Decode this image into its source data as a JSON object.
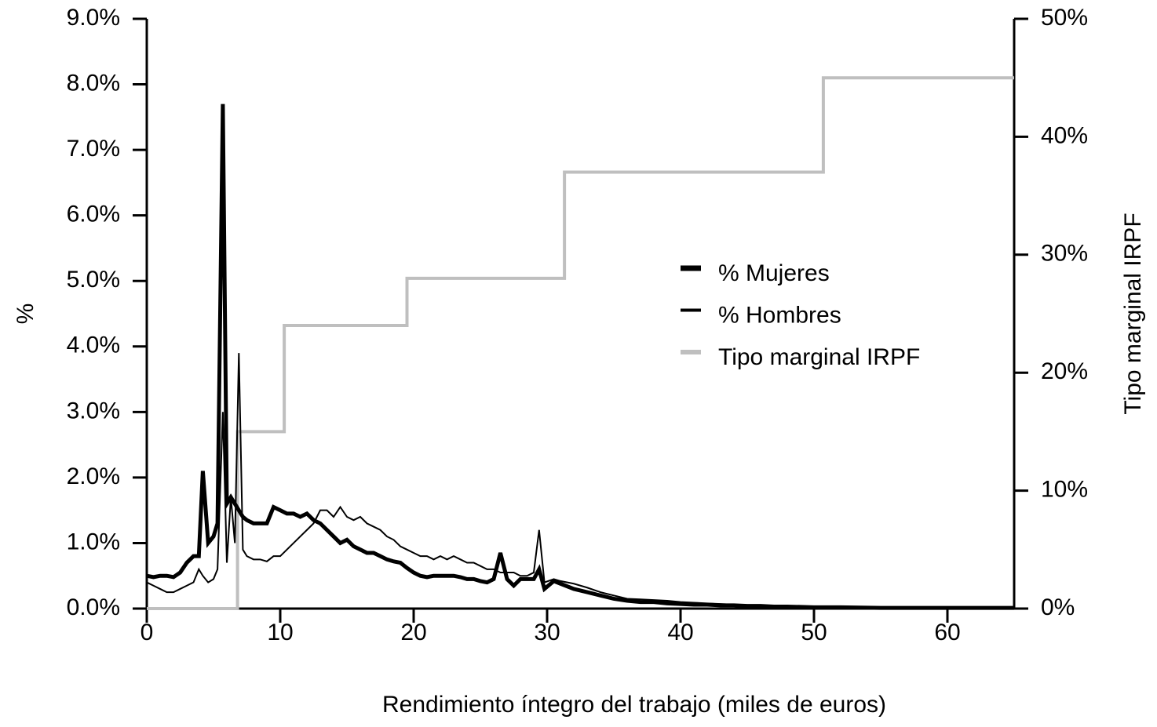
{
  "chart_data": {
    "type": "line",
    "xlabel": "Rendimiento íntegro del trabajo (miles de euros)",
    "ylabel": "%",
    "y2label": "Tipo marginal IRPF",
    "xlim": [
      0,
      65
    ],
    "xticks": [
      0,
      10,
      20,
      30,
      40,
      50,
      60
    ],
    "ylim": [
      0,
      9
    ],
    "yticks": [
      {
        "value": 0,
        "label": "0.0%"
      },
      {
        "value": 1,
        "label": "1.0%"
      },
      {
        "value": 2,
        "label": "2.0%"
      },
      {
        "value": 3,
        "label": "3.0%"
      },
      {
        "value": 4,
        "label": "4.0%"
      },
      {
        "value": 5,
        "label": "5.0%"
      },
      {
        "value": 6,
        "label": "6.0%"
      },
      {
        "value": 7,
        "label": "7.0%"
      },
      {
        "value": 8,
        "label": "8.0%"
      },
      {
        "value": 9,
        "label": "9.0%"
      }
    ],
    "y2lim": [
      0,
      50
    ],
    "y2ticks": [
      {
        "value": 0,
        "label": "0%"
      },
      {
        "value": 10,
        "label": "10%"
      },
      {
        "value": 20,
        "label": "20%"
      },
      {
        "value": 30,
        "label": "30%"
      },
      {
        "value": 40,
        "label": "40%"
      },
      {
        "value": 50,
        "label": "50%"
      }
    ],
    "grid": false,
    "legend": "center-right",
    "series": [
      {
        "name": "% Mujeres",
        "color": "#000000",
        "line_width": 5,
        "x": [
          0,
          0.5,
          1,
          1.5,
          2,
          2.5,
          3,
          3.5,
          3.9,
          4.2,
          4.6,
          5,
          5.3,
          5.7,
          6,
          6.3,
          6.6,
          6.9,
          7.2,
          7.5,
          8,
          8.5,
          9,
          9.5,
          10,
          10.5,
          11,
          11.5,
          12,
          12.5,
          13,
          13.5,
          14,
          14.5,
          15,
          15.5,
          16,
          16.5,
          17,
          17.5,
          18,
          18.5,
          19,
          19.5,
          20,
          20.5,
          21,
          21.5,
          22,
          22.5,
          23,
          23.5,
          24,
          24.5,
          25,
          25.5,
          26,
          26.5,
          27,
          27.5,
          28,
          28.5,
          29,
          29.4,
          29.8,
          30.5,
          31,
          32,
          33,
          34,
          35,
          36,
          37,
          38,
          39,
          40,
          41,
          42,
          43,
          44,
          45,
          46,
          47,
          48,
          50,
          52,
          55,
          58,
          61,
          65
        ],
        "values": [
          0.5,
          0.48,
          0.5,
          0.5,
          0.48,
          0.55,
          0.7,
          0.8,
          0.8,
          2.1,
          1.0,
          1.1,
          1.3,
          7.7,
          1.6,
          1.7,
          1.6,
          1.5,
          1.4,
          1.35,
          1.3,
          1.3,
          1.3,
          1.55,
          1.5,
          1.45,
          1.45,
          1.4,
          1.45,
          1.35,
          1.3,
          1.2,
          1.1,
          1.0,
          1.05,
          0.95,
          0.9,
          0.85,
          0.85,
          0.8,
          0.75,
          0.72,
          0.7,
          0.62,
          0.55,
          0.5,
          0.48,
          0.5,
          0.5,
          0.5,
          0.5,
          0.48,
          0.45,
          0.45,
          0.42,
          0.4,
          0.45,
          0.85,
          0.45,
          0.35,
          0.45,
          0.45,
          0.45,
          0.6,
          0.3,
          0.42,
          0.38,
          0.3,
          0.25,
          0.2,
          0.15,
          0.12,
          0.1,
          0.1,
          0.08,
          0.07,
          0.06,
          0.06,
          0.05,
          0.05,
          0.04,
          0.04,
          0.03,
          0.03,
          0.02,
          0.02,
          0.01,
          0.01,
          0.01,
          0.01
        ]
      },
      {
        "name": "% Hombres",
        "color": "#000000",
        "line_width": 2,
        "x": [
          0,
          0.5,
          1,
          1.5,
          2,
          2.5,
          3,
          3.5,
          3.9,
          4.2,
          4.6,
          5,
          5.3,
          5.7,
          6,
          6.3,
          6.6,
          6.9,
          7.2,
          7.5,
          8,
          8.5,
          9,
          9.5,
          10,
          10.5,
          11,
          11.5,
          12,
          12.5,
          13,
          13.5,
          14,
          14.5,
          15,
          15.5,
          16,
          16.5,
          17,
          17.5,
          18,
          18.5,
          19,
          19.5,
          20,
          20.5,
          21,
          21.5,
          22,
          22.5,
          23,
          23.5,
          24,
          24.5,
          25,
          25.5,
          26,
          26.5,
          27,
          27.5,
          28,
          28.5,
          29,
          29.4,
          29.8,
          30.5,
          31,
          32,
          33,
          34,
          35,
          36,
          37,
          38,
          39,
          40,
          41,
          42,
          43,
          44,
          45,
          46,
          47,
          48,
          50,
          52,
          55,
          58,
          61,
          65
        ],
        "values": [
          0.4,
          0.35,
          0.3,
          0.25,
          0.25,
          0.3,
          0.35,
          0.4,
          0.6,
          0.5,
          0.4,
          0.45,
          0.6,
          3.0,
          0.7,
          1.7,
          1.0,
          3.9,
          0.9,
          0.8,
          0.75,
          0.75,
          0.72,
          0.8,
          0.8,
          0.9,
          1.0,
          1.1,
          1.2,
          1.3,
          1.5,
          1.5,
          1.4,
          1.55,
          1.4,
          1.35,
          1.4,
          1.3,
          1.25,
          1.2,
          1.1,
          1.05,
          0.95,
          0.9,
          0.85,
          0.8,
          0.8,
          0.75,
          0.8,
          0.75,
          0.8,
          0.75,
          0.7,
          0.7,
          0.65,
          0.6,
          0.6,
          0.55,
          0.55,
          0.55,
          0.5,
          0.5,
          0.55,
          1.2,
          0.4,
          0.45,
          0.42,
          0.38,
          0.32,
          0.25,
          0.2,
          0.15,
          0.14,
          0.13,
          0.12,
          0.1,
          0.09,
          0.08,
          0.07,
          0.06,
          0.05,
          0.05,
          0.04,
          0.04,
          0.03,
          0.03,
          0.02,
          0.02,
          0.02,
          0.02
        ]
      },
      {
        "name": "Tipo marginal IRPF",
        "color": "#bfbfbf",
        "line_width": 4,
        "axis": "y2",
        "x": [
          0,
          6.8,
          6.8,
          10.3,
          10.3,
          19.5,
          19.5,
          31.3,
          31.3,
          50.7,
          50.7,
          65
        ],
        "values": [
          0,
          0,
          15,
          15,
          24,
          24,
          28,
          28,
          37,
          37,
          45,
          45
        ]
      }
    ]
  }
}
